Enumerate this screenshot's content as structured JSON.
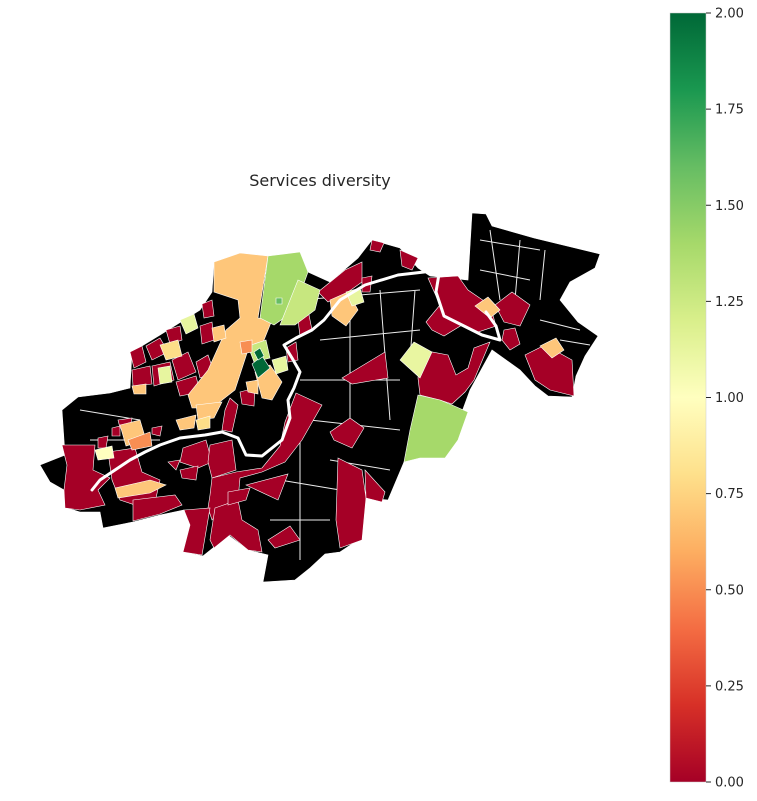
{
  "title": "Services diversity",
  "colorbar": {
    "min": 0,
    "max": 2,
    "ticks": [
      "0.00",
      "0.25",
      "0.50",
      "0.75",
      "1.00",
      "1.25",
      "1.50",
      "1.75",
      "2.00"
    ],
    "colors": [
      "#a50026",
      "#d73027",
      "#f46d43",
      "#fdae61",
      "#fee08b",
      "#ffffbf",
      "#d9ef8b",
      "#a6d96a",
      "#66bd63",
      "#1a9850",
      "#006837"
    ]
  },
  "colors": {
    "no_data": "#dcdcdc",
    "background": "#ffffff"
  },
  "map": {
    "regions": [
      {
        "name": "northwest-large-orange",
        "value": 0.7
      },
      {
        "name": "north-green-park",
        "value": 1.45
      },
      {
        "name": "center-north-orange",
        "value": 0.72
      },
      {
        "name": "east-light-yellow",
        "value": 1.15
      },
      {
        "name": "east-green-park",
        "value": 1.45
      },
      {
        "name": "east-orange-small",
        "value": 0.7
      },
      {
        "name": "center-dark-green",
        "value": 2.0
      }
    ]
  }
}
